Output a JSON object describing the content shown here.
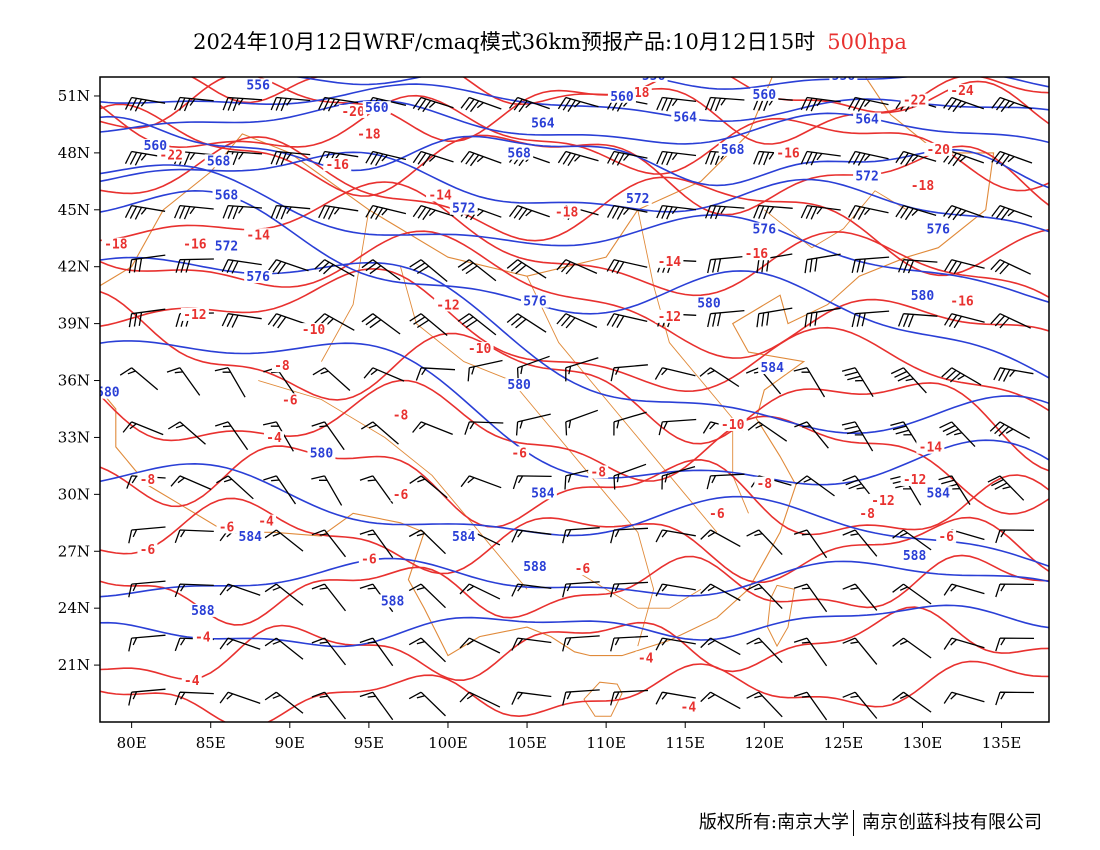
{
  "title": {
    "text": "2024年10月12日WRF/cmaq模式36km预报产品:10月12日15时",
    "level": "500hpa"
  },
  "colors": {
    "height_contour": "#2a3fd6",
    "temperature_contour": "#e8312f",
    "boundary": "#e08a3a",
    "wind_barb": "#000000",
    "frame": "#000000"
  },
  "axes": {
    "lat_labels": [
      "51N",
      "48N",
      "45N",
      "42N",
      "39N",
      "36N",
      "33N",
      "30N",
      "27N",
      "24N",
      "21N"
    ],
    "lat_values": [
      51,
      48,
      45,
      42,
      39,
      36,
      33,
      30,
      27,
      24,
      21
    ],
    "lon_labels": [
      "80E",
      "85E",
      "90E",
      "95E",
      "100E",
      "105E",
      "110E",
      "115E",
      "120E",
      "125E",
      "130E",
      "135E"
    ],
    "lon_values": [
      80,
      85,
      90,
      95,
      100,
      105,
      110,
      115,
      120,
      125,
      130,
      135
    ],
    "lon_range": [
      78,
      138
    ],
    "lat_range": [
      18,
      52
    ]
  },
  "height_contours": [
    {
      "level": "556",
      "label_pos": [
        [
          88,
          51.4
        ],
        [
          113,
          51.9
        ],
        [
          125,
          51.9
        ]
      ]
    },
    {
      "level": "560",
      "label_pos": [
        [
          95.5,
          50.2
        ],
        [
          111,
          50.8
        ],
        [
          120,
          50.9
        ],
        [
          81.5,
          48.2
        ]
      ]
    },
    {
      "level": "564",
      "label_pos": [
        [
          106,
          49.4
        ],
        [
          115,
          49.7
        ],
        [
          126.5,
          49.6
        ]
      ]
    },
    {
      "level": "568",
      "label_pos": [
        [
          85.5,
          47.4
        ],
        [
          104.5,
          47.8
        ],
        [
          118,
          48.0
        ],
        [
          86,
          45.6
        ]
      ]
    },
    {
      "level": "572",
      "label_pos": [
        [
          126.5,
          46.6
        ],
        [
          112,
          45.4
        ],
        [
          101,
          44.9
        ],
        [
          86,
          42.9
        ]
      ]
    },
    {
      "level": "576",
      "label_pos": [
        [
          120,
          43.8
        ],
        [
          131,
          43.8
        ],
        [
          88,
          41.3
        ],
        [
          105.5,
          40.0
        ]
      ]
    },
    {
      "level": "580",
      "label_pos": [
        [
          116.5,
          39.9
        ],
        [
          130,
          40.3
        ],
        [
          104.5,
          35.6
        ],
        [
          92,
          32.0
        ],
        [
          78.5,
          35.2
        ]
      ]
    },
    {
      "level": "584",
      "label_pos": [
        [
          120.5,
          36.5
        ],
        [
          106,
          29.9
        ],
        [
          101,
          27.6
        ],
        [
          131,
          29.9
        ],
        [
          87.5,
          27.6
        ]
      ]
    },
    {
      "level": "588",
      "label_pos": [
        [
          105.5,
          26.0
        ],
        [
          96.5,
          24.2
        ],
        [
          84.5,
          23.7
        ],
        [
          129.5,
          26.6
        ]
      ]
    }
  ],
  "temperature_contours": [
    {
      "level": "-24",
      "label_pos": [
        [
          132.5,
          51.1
        ]
      ]
    },
    {
      "level": "-22",
      "label_pos": [
        [
          129.5,
          50.6
        ],
        [
          82.5,
          47.7
        ]
      ]
    },
    {
      "level": "-20",
      "label_pos": [
        [
          94,
          50.0
        ],
        [
          118,
          52.2
        ],
        [
          131,
          48.0
        ]
      ]
    },
    {
      "level": "-18",
      "label_pos": [
        [
          95,
          48.8
        ],
        [
          112,
          51.0
        ],
        [
          107.5,
          44.7
        ],
        [
          79,
          43.0
        ],
        [
          130,
          46.1
        ]
      ]
    },
    {
      "level": "-16",
      "label_pos": [
        [
          93,
          47.2
        ],
        [
          84,
          43.0
        ],
        [
          121.5,
          47.8
        ],
        [
          119.5,
          42.5
        ],
        [
          132.5,
          40.0
        ]
      ]
    },
    {
      "level": "-14",
      "label_pos": [
        [
          99.5,
          45.6
        ],
        [
          88,
          43.5
        ],
        [
          114,
          42.1
        ],
        [
          130.5,
          32.3
        ]
      ]
    },
    {
      "level": "-12",
      "label_pos": [
        [
          84,
          39.3
        ],
        [
          100,
          39.8
        ],
        [
          114,
          39.2
        ],
        [
          129.5,
          30.6
        ],
        [
          127.5,
          29.5
        ]
      ]
    },
    {
      "level": "-10",
      "label_pos": [
        [
          91.5,
          38.5
        ],
        [
          102,
          37.5
        ],
        [
          118,
          33.5
        ]
      ]
    },
    {
      "level": "-8",
      "label_pos": [
        [
          89.5,
          36.6
        ],
        [
          97,
          34.0
        ],
        [
          120,
          30.4
        ],
        [
          126.5,
          28.8
        ],
        [
          81,
          30.6
        ],
        [
          109.5,
          31.0
        ]
      ]
    },
    {
      "level": "-6",
      "label_pos": [
        [
          90,
          34.8
        ],
        [
          104.5,
          32.0
        ],
        [
          97,
          29.8
        ],
        [
          117,
          28.8
        ],
        [
          81,
          26.9
        ],
        [
          95,
          26.4
        ],
        [
          108.5,
          25.9
        ],
        [
          131.5,
          27.6
        ],
        [
          86,
          28.1
        ]
      ]
    },
    {
      "level": "-4",
      "label_pos": [
        [
          89,
          32.8
        ],
        [
          88.5,
          28.4
        ],
        [
          84.5,
          22.3
        ],
        [
          83.8,
          20.0
        ],
        [
          112.5,
          21.2
        ],
        [
          115.2,
          18.6
        ]
      ]
    }
  ],
  "footer": {
    "copyright": "版权所有:南京大学",
    "company": "南京创蓝科技有限公司"
  }
}
